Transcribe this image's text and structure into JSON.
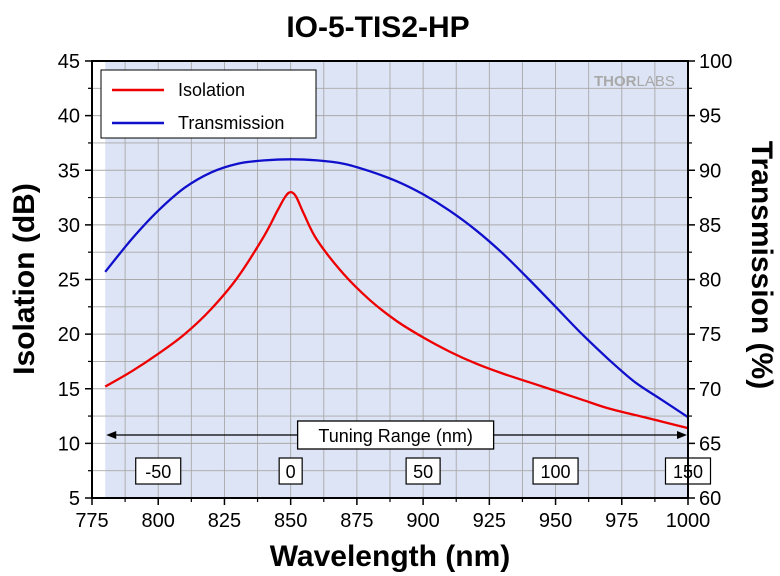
{
  "chart_data": {
    "type": "line",
    "title": "IO-5-TIS2-HP",
    "xlabel": "Wavelength (nm)",
    "ylabel": "Isolation (dB)",
    "y2label": "Transmission (%)",
    "xlim": [
      775,
      1000
    ],
    "ylim": [
      5,
      45
    ],
    "y2lim": [
      60,
      100
    ],
    "x_ticks": [
      "775",
      "800",
      "825",
      "850",
      "875",
      "900",
      "925",
      "950",
      "975",
      "1000"
    ],
    "y_ticks": [
      "5",
      "10",
      "15",
      "20",
      "25",
      "30",
      "35",
      "40",
      "45"
    ],
    "y2_ticks": [
      "60",
      "65",
      "70",
      "75",
      "80",
      "85",
      "90",
      "95",
      "100"
    ],
    "grid": true,
    "legend": "top-left",
    "shaded_region": {
      "x": [
        780,
        1000
      ],
      "color": "#dde4f5"
    },
    "series": [
      {
        "name": "Isolation",
        "axis": "left",
        "color": "#ee0000",
        "x": [
          780,
          790,
          800,
          810,
          820,
          830,
          840,
          845,
          848,
          850,
          852,
          855,
          860,
          870,
          880,
          890,
          900,
          910,
          920,
          930,
          940,
          950,
          960,
          970,
          980,
          990,
          1000
        ],
        "y": [
          15.2,
          16.6,
          18.2,
          20.0,
          22.3,
          25.2,
          29.0,
          31.3,
          32.6,
          33.0,
          32.6,
          31.0,
          28.6,
          25.5,
          23.1,
          21.2,
          19.7,
          18.4,
          17.3,
          16.4,
          15.6,
          14.8,
          14.0,
          13.2,
          12.6,
          12.0,
          11.4
        ]
      },
      {
        "name": "Transmission",
        "axis": "right",
        "color": "#1010cc",
        "x": [
          780,
          790,
          800,
          810,
          820,
          830,
          840,
          850,
          860,
          870,
          880,
          890,
          900,
          910,
          920,
          930,
          940,
          950,
          960,
          970,
          980,
          990,
          1000
        ],
        "y": [
          80.7,
          83.7,
          86.3,
          88.4,
          89.8,
          90.6,
          90.9,
          91.0,
          90.9,
          90.6,
          89.9,
          89.0,
          87.8,
          86.3,
          84.5,
          82.4,
          80.0,
          77.5,
          75.0,
          72.7,
          70.6,
          69.0,
          67.4
        ]
      }
    ],
    "annotation": {
      "label": "Tuning Range (nm)",
      "range_nm": [
        780,
        1000
      ],
      "markers": [
        {
          "x": 800,
          "text": "-50"
        },
        {
          "x": 850,
          "text": "0"
        },
        {
          "x": 900,
          "text": "50"
        },
        {
          "x": 950,
          "text": "100"
        },
        {
          "x": 1000,
          "text": "150"
        }
      ]
    }
  },
  "watermark": {
    "bold": "THOR",
    "light": "LABS"
  },
  "colors": {
    "plot_background": "#dde4f5",
    "grid": "#a9a9a9",
    "axis": "#000000",
    "isolation": "#ee0000",
    "transmission": "#1010cc"
  }
}
